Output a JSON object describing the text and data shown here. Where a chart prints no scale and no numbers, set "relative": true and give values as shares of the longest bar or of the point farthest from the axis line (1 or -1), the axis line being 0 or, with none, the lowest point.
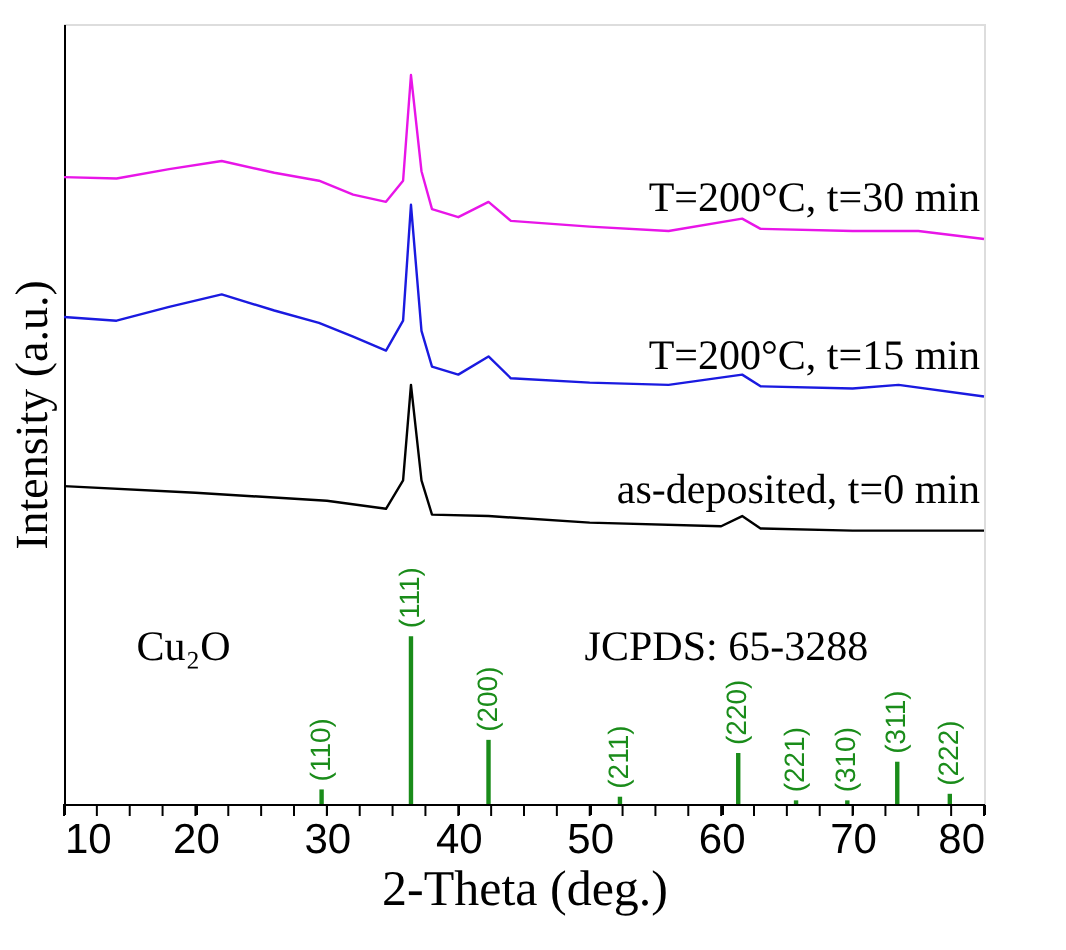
{
  "chart_data": {
    "type": "line",
    "relative": true,
    "xlabel": "2-Theta (deg.)",
    "ylabel": "Intensity (a.u.)",
    "xlim": [
      10,
      80
    ],
    "xticks": [
      10,
      {
        "value": 12.5,
        "label": null
      },
      {
        "value": 15,
        "label": null
      },
      {
        "value": 17.5,
        "label": null
      },
      20,
      {
        "value": 22.5,
        "label": null
      },
      {
        "value": 25,
        "label": null
      },
      {
        "value": 27.5,
        "label": null
      },
      30,
      {
        "value": 32.5,
        "label": null
      },
      {
        "value": 35,
        "label": null
      },
      {
        "value": 37.5,
        "label": null
      },
      40,
      {
        "value": 42.5,
        "label": null
      },
      {
        "value": 45,
        "label": null
      },
      {
        "value": 47.5,
        "label": null
      },
      50,
      {
        "value": 52.5,
        "label": null
      },
      {
        "value": 55,
        "label": null
      },
      {
        "value": 57.5,
        "label": null
      },
      60,
      {
        "value": 62.5,
        "label": null
      },
      {
        "value": 65,
        "label": null
      },
      {
        "value": 67.5,
        "label": null
      },
      70,
      {
        "value": 72.5,
        "label": null
      },
      {
        "value": 75,
        "label": null
      },
      {
        "value": 77.5,
        "label": null
      },
      80
    ],
    "tick_labels": "x",
    "grid": false,
    "series": [
      {
        "name": "T=200°C, t=30 min",
        "color": "#e815e8",
        "x": [
          10,
          14,
          18,
          22,
          26,
          29.4,
          32,
          34.5,
          35.8,
          36.4,
          37.2,
          38,
          40,
          42.3,
          44,
          50,
          56,
          61.6,
          63,
          70,
          75,
          80
        ],
        "values": [
          0.86,
          0.858,
          0.871,
          0.882,
          0.866,
          0.855,
          0.836,
          0.826,
          0.855,
          1.0,
          0.868,
          0.816,
          0.805,
          0.826,
          0.8,
          0.792,
          0.786,
          0.803,
          0.789,
          0.786,
          0.786,
          0.775
        ]
      },
      {
        "name": "T=200°C, t=15 min",
        "color": "#1a1ae0",
        "x": [
          10,
          14,
          18,
          22,
          26,
          29.4,
          32,
          34.5,
          35.8,
          36.4,
          37.2,
          38,
          40,
          42.3,
          44,
          50,
          56,
          61.6,
          63,
          70,
          73.5,
          80
        ],
        "values": [
          0.668,
          0.663,
          0.682,
          0.699,
          0.677,
          0.66,
          0.641,
          0.622,
          0.663,
          0.822,
          0.649,
          0.6,
          0.589,
          0.614,
          0.584,
          0.578,
          0.575,
          0.589,
          0.573,
          0.57,
          0.575,
          0.559
        ]
      },
      {
        "name": "as-deposited, t=0 min",
        "color": "#000000",
        "x": [
          10,
          20,
          30,
          34.5,
          35.8,
          36.4,
          37.2,
          38,
          42.3,
          50,
          60,
          61.6,
          63,
          70,
          80
        ],
        "values": [
          0.436,
          0.427,
          0.416,
          0.405,
          0.444,
          0.575,
          0.444,
          0.397,
          0.395,
          0.386,
          0.381,
          0.395,
          0.378,
          0.375,
          0.375
        ]
      },
      {
        "type": "bar",
        "color": "#1a8c1a",
        "x": [
          29.6,
          36.4,
          42.3,
          52.3,
          61.3,
          65.7,
          69.6,
          73.4,
          77.4
        ],
        "values": [
          0.02,
          0.23,
          0.088,
          0.01,
          0.07,
          0.005,
          0.005,
          0.058,
          0.014
        ]
      }
    ],
    "annotations": [
      "Cu₂O",
      "JCPDS: 65-3288",
      {
        "text": "(110)",
        "x": 29.6,
        "y": 0.02
      },
      {
        "text": "(111)",
        "x": 36.4,
        "y": 0.23
      },
      {
        "text": "(200)",
        "x": 42.3,
        "y": 0.088
      },
      {
        "text": "(211)",
        "x": 52.3,
        "y": 0.01
      },
      {
        "text": "(220)",
        "x": 61.3,
        "y": 0.07
      },
      {
        "text": "(221)",
        "x": 65.7,
        "y": 0.005
      },
      {
        "text": "(310)",
        "x": 69.6,
        "y": 0.005
      },
      {
        "text": "(311)",
        "x": 73.4,
        "y": 0.058
      },
      {
        "text": "(222)",
        "x": 77.4,
        "y": 0.014
      }
    ]
  }
}
